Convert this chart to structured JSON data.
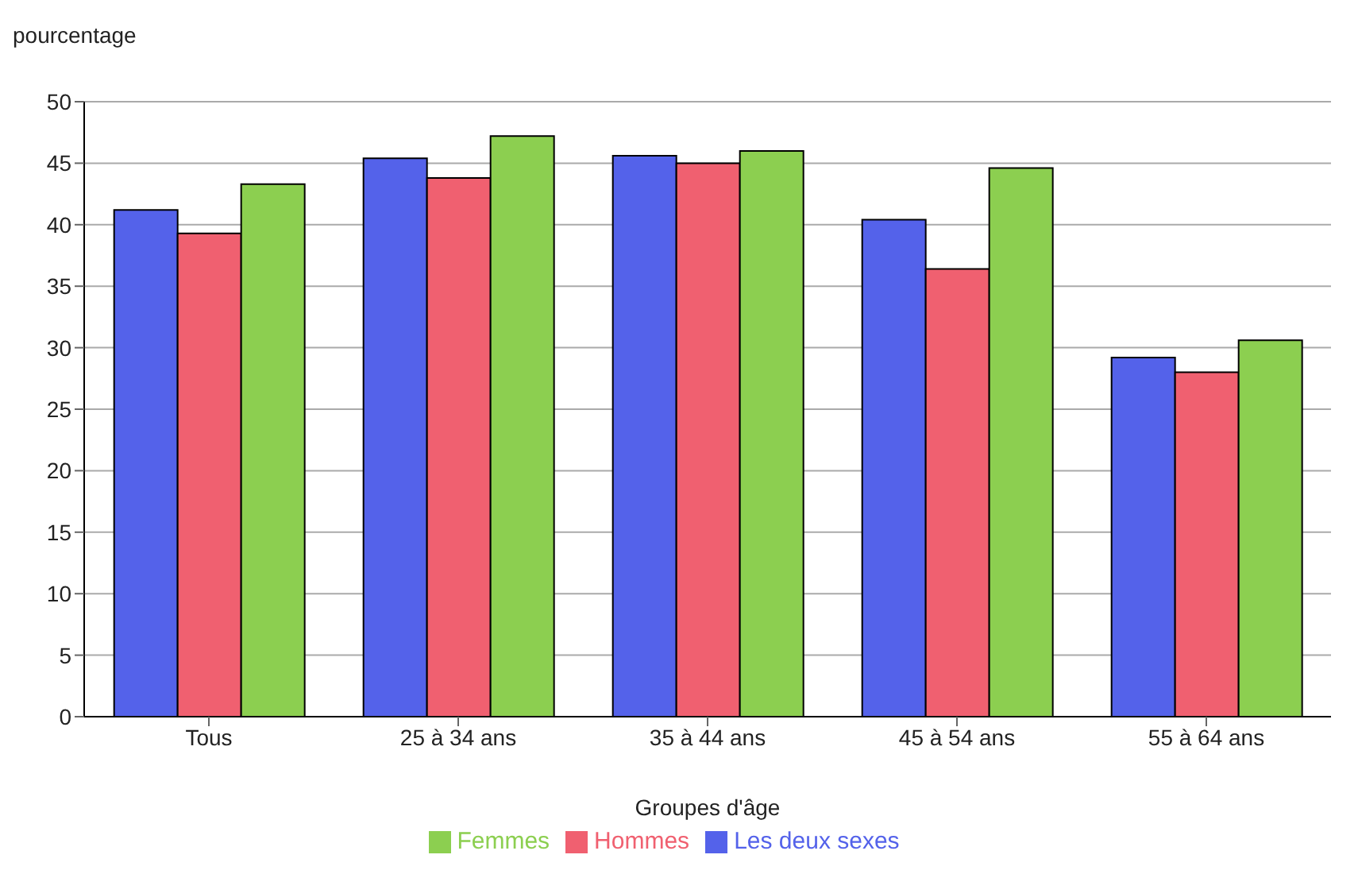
{
  "chart_data": {
    "type": "bar",
    "ylabel": "pourcentage",
    "xlabel": "Groupes d'âge",
    "categories": [
      "Tous",
      "25 à 34 ans",
      "35 à 44 ans",
      "45 à 54 ans",
      "55 à 64 ans"
    ],
    "series": [
      {
        "name": "Les deux sexes",
        "color": "#5462ea",
        "values": [
          41.2,
          45.4,
          45.6,
          40.4,
          29.2
        ]
      },
      {
        "name": "Hommes",
        "color": "#f06070",
        "values": [
          39.3,
          43.8,
          45.0,
          36.4,
          28.0
        ]
      },
      {
        "name": "Femmes",
        "color": "#8ccf50",
        "values": [
          43.3,
          47.2,
          46.0,
          44.6,
          30.6
        ]
      }
    ],
    "ylim": [
      0,
      50
    ],
    "yticks": [
      0,
      5,
      10,
      15,
      20,
      25,
      30,
      35,
      40,
      45,
      50
    ],
    "grid": "y",
    "legend": "bottom"
  }
}
